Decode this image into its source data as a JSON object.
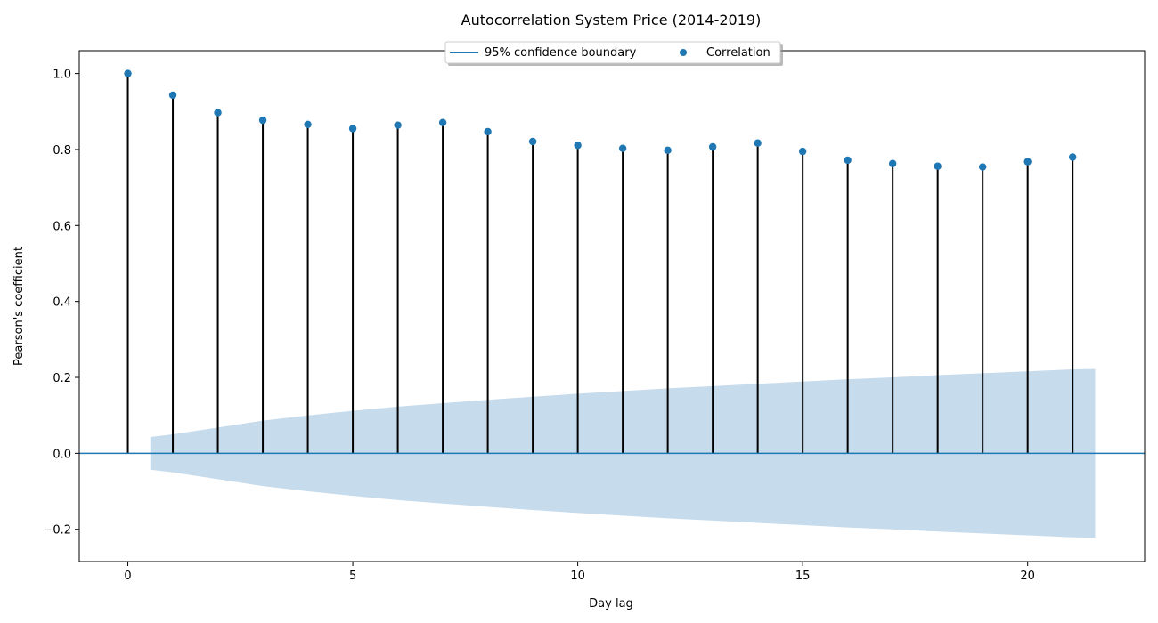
{
  "chart_data": {
    "type": "stem",
    "title": "Autocorrelation System Price (2014-2019)",
    "xlabel": "Day lag",
    "ylabel": "Pearson's coefficient",
    "xlim": [
      -1.08,
      22.6
    ],
    "ylim": [
      -0.285,
      1.06
    ],
    "x_ticks": [
      0,
      5,
      10,
      15,
      20
    ],
    "y_ticks": [
      -0.2,
      0.0,
      0.2,
      0.4,
      0.6,
      0.8,
      1.0
    ],
    "y_tick_labels": [
      "−0.2",
      "0.0",
      "0.2",
      "0.4",
      "0.6",
      "0.8",
      "1.0"
    ],
    "lags": [
      0,
      1,
      2,
      3,
      4,
      5,
      6,
      7,
      8,
      9,
      10,
      11,
      12,
      13,
      14,
      15,
      16,
      17,
      18,
      19,
      20,
      21
    ],
    "correlation": [
      1.0,
      0.943,
      0.897,
      0.877,
      0.866,
      0.855,
      0.864,
      0.871,
      0.847,
      0.821,
      0.811,
      0.803,
      0.798,
      0.807,
      0.817,
      0.795,
      0.772,
      0.763,
      0.756,
      0.754,
      0.768,
      0.78
    ],
    "confidence_band": {
      "x": [
        0.5,
        1,
        2,
        3,
        4,
        5,
        6,
        7,
        8,
        9,
        10,
        11,
        12,
        13,
        14,
        15,
        16,
        17,
        18,
        19,
        20,
        21,
        21.5
      ],
      "upper": [
        0.043,
        0.05,
        0.068,
        0.086,
        0.1,
        0.112,
        0.123,
        0.132,
        0.141,
        0.149,
        0.157,
        0.164,
        0.171,
        0.177,
        0.183,
        0.189,
        0.195,
        0.2,
        0.206,
        0.211,
        0.216,
        0.221,
        0.222
      ]
    },
    "zero_line": 0.0,
    "legend": {
      "placement": "upper center",
      "entries": [
        {
          "label": "95% confidence boundary",
          "kind": "line",
          "color": "#1f77b4"
        },
        {
          "label": "Correlation",
          "kind": "marker",
          "color": "#1f77b4"
        }
      ]
    },
    "colors": {
      "series": "#1f77b4",
      "stem": "#000000",
      "band": "#c6dbec",
      "axes": "#000000"
    },
    "grid": false
  }
}
